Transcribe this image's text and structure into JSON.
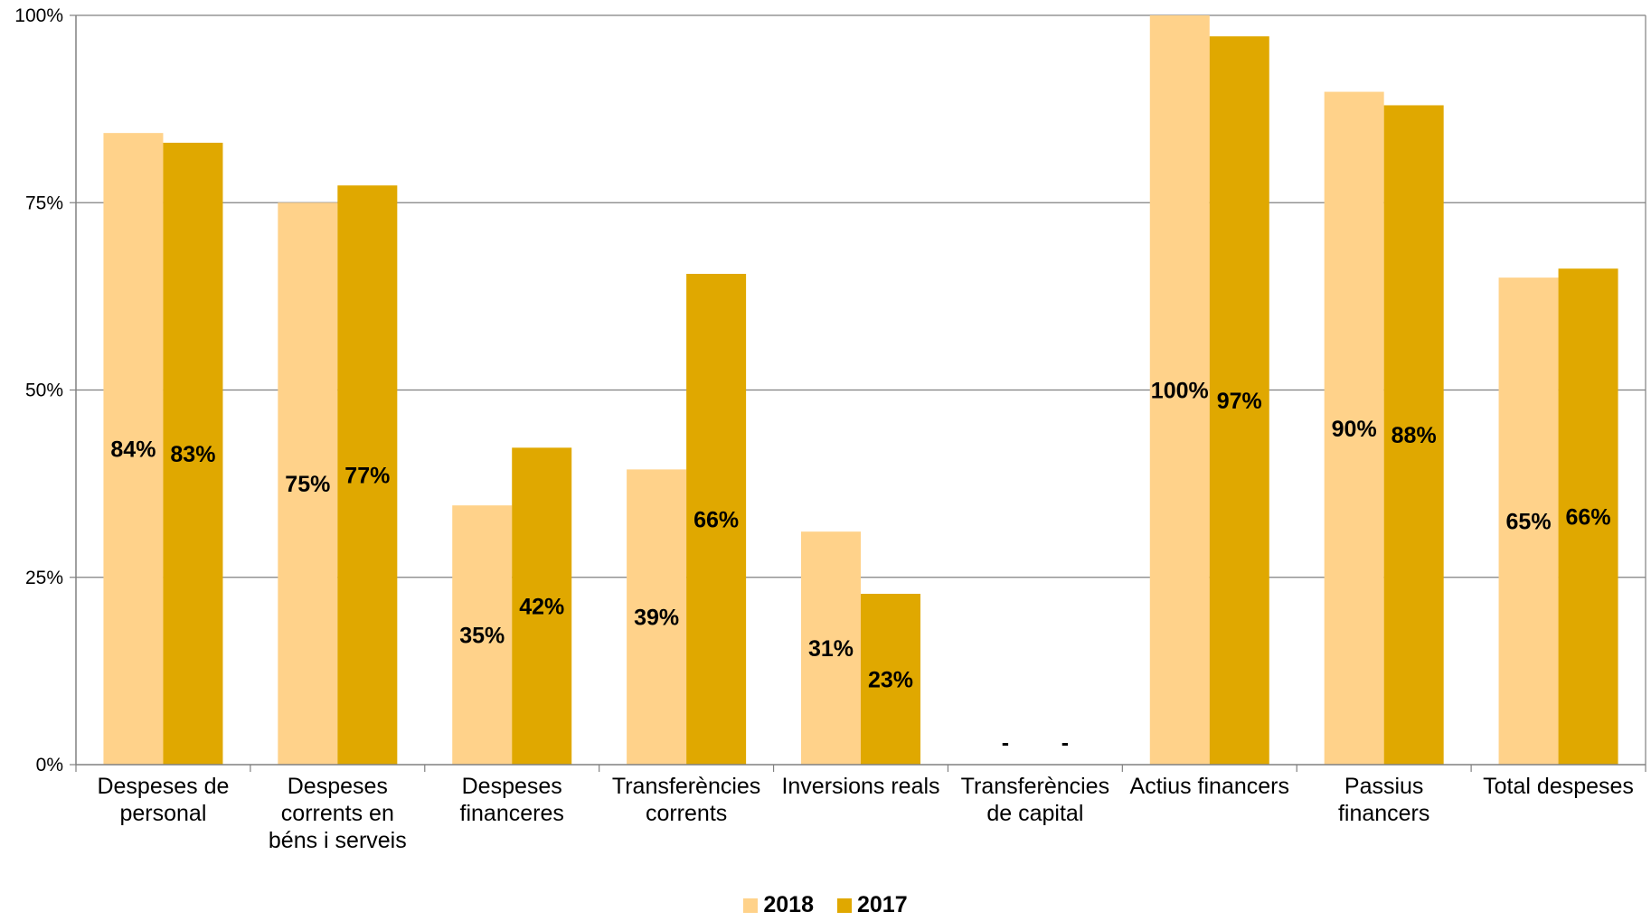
{
  "chart_data": {
    "type": "bar",
    "categories": [
      [
        "Despeses de",
        "personal"
      ],
      [
        "Despeses",
        "corrents en",
        "béns i serveis"
      ],
      [
        "Despeses",
        "financeres"
      ],
      [
        "Transferències",
        "corrents"
      ],
      [
        "Inversions reals"
      ],
      [
        "Transferències",
        "de capital"
      ],
      [
        "Actius financers"
      ],
      [
        "Passius",
        "financers"
      ],
      [
        "Total despeses"
      ]
    ],
    "series": [
      {
        "name": "2018",
        "color": "#FFD28A",
        "values": [
          84.3,
          75.0,
          34.6,
          39.4,
          31.1,
          0,
          100.0,
          89.8,
          65.0
        ],
        "labels": [
          "84%",
          "75%",
          "35%",
          "39%",
          "31%",
          "-",
          "100%",
          "90%",
          "65%"
        ]
      },
      {
        "name": "2017",
        "color": "#E0A800",
        "values": [
          83.0,
          77.3,
          42.3,
          65.5,
          22.8,
          0,
          97.2,
          88.0,
          66.2
        ],
        "labels": [
          "83%",
          "77%",
          "42%",
          "66%",
          "23%",
          "-",
          "97%",
          "88%",
          "66%"
        ]
      }
    ],
    "ylim": [
      0,
      100
    ],
    "yticks": [
      0,
      25,
      50,
      75,
      100
    ],
    "ytick_labels": [
      "0%",
      "25%",
      "50%",
      "75%",
      "100%"
    ],
    "grid": true,
    "legend_position": "bottom-center"
  }
}
